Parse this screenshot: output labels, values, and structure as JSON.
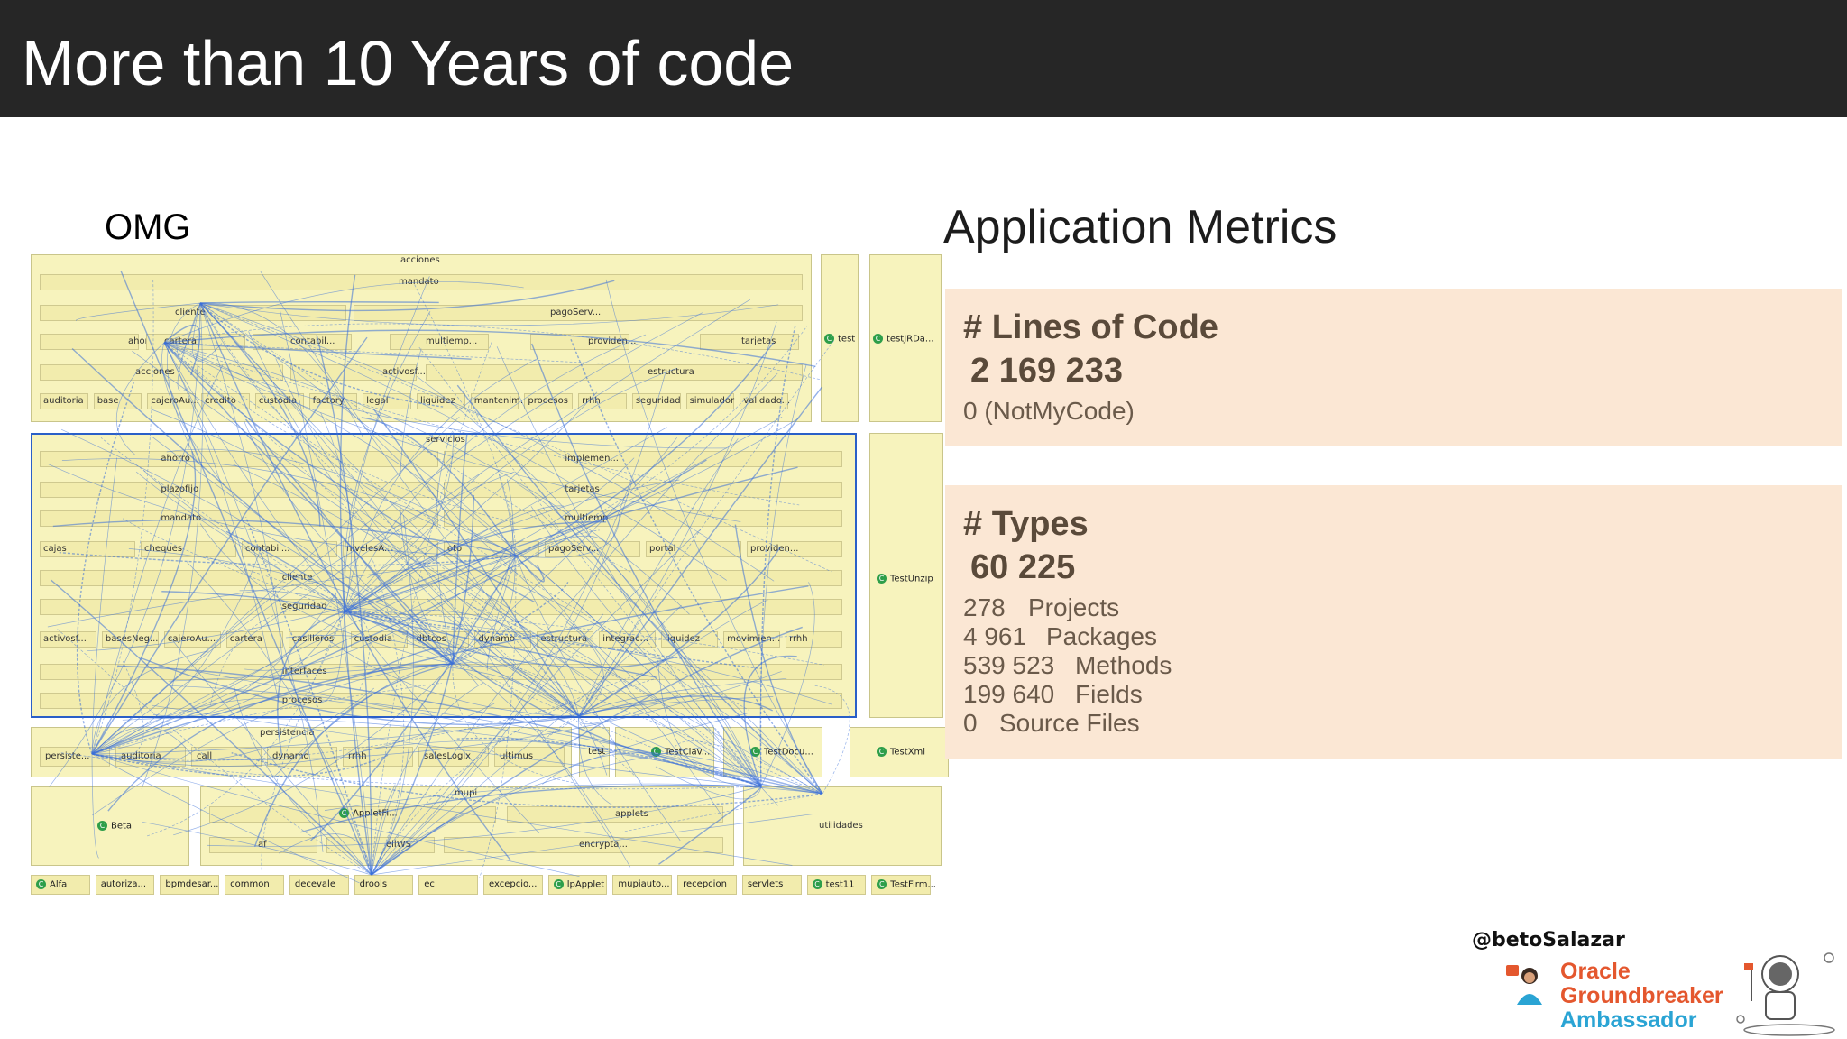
{
  "header": {
    "title": "More than 10 Years of code"
  },
  "diagram": {
    "caption": "OMG",
    "top_boxes": [
      "acciones",
      "mandato",
      "cliente",
      "pagoServ...",
      "ahorro",
      "cartera",
      "contabil...",
      "multiemp...",
      "providen...",
      "tarjetas",
      "acciones",
      "activosf...",
      "estructura"
    ],
    "top_row": [
      "auditoria",
      "base",
      "cajeroAu...",
      "credito",
      "custodia",
      "factory",
      "legal",
      "liquidez",
      "mantenim...",
      "procesos",
      "rrhh",
      "seguridad",
      "simulador",
      "validado..."
    ],
    "side_top": [
      "test",
      "testJRDa..."
    ],
    "servicios": {
      "title": "servicios",
      "rows": [
        "ahorro",
        "implemen...",
        "plazofijo",
        "tarjetas",
        "mandato",
        "multiemp...",
        "cajas",
        "cheques",
        "contabil...",
        "nivelesA...",
        "oto",
        "pagoServ...",
        "portal",
        "providen...",
        "cliente",
        "seguridad",
        "activosf...",
        "basesNeg...",
        "cajeroAu...",
        "cartera",
        "casilleros",
        "custodia",
        "dbtcos",
        "dynamo",
        "estructura",
        "integrac...",
        "liquidez",
        "movimien...",
        "rrhh",
        "interfaces",
        "procesos"
      ]
    },
    "side_mid": "TestUnzip",
    "persistencia": {
      "title": "persistencia",
      "items": [
        "persiste...",
        "auditoria",
        "call",
        "dynamo",
        "rrhh",
        "salesLogix",
        "ultimus"
      ]
    },
    "test_items": [
      "test",
      "TestClav...",
      "TestDocu...",
      "TestXml"
    ],
    "mupi": {
      "title": "mupi",
      "items": [
        "AppletFi...",
        "applets",
        "af",
        "ellWS",
        "encrypta..."
      ]
    },
    "beta": "Beta",
    "utilidades": "utilidades",
    "bottom_row": [
      "Alfa",
      "autoriza...",
      "bpmdesar...",
      "common",
      "decevale",
      "drools",
      "ec",
      "excepcio...",
      "lpApplet",
      "mupiauto...",
      "recepcion",
      "servlets",
      "test11",
      "TestFirm..."
    ],
    "class_glyph": "C",
    "colors": {
      "box_fill": "#f7f3bd",
      "edge": "#3a6fd8",
      "selection": "#2a5fc8"
    }
  },
  "metrics": {
    "title": "Application Metrics",
    "lines_of_code": {
      "heading": "# Lines of Code",
      "value": "2 169 233",
      "sub": "0 (NotMyCode)"
    },
    "types": {
      "heading": "# Types",
      "value": "60 225",
      "rows": [
        {
          "num": "278",
          "label": "Projects"
        },
        {
          "num": "4 961",
          "label": "Packages"
        },
        {
          "num": "539 523",
          "label": "Methods"
        },
        {
          "num": "199 640",
          "label": "Fields"
        },
        {
          "num": "0",
          "label": "Source Files"
        }
      ]
    },
    "card_color": "#fbe7d4"
  },
  "footer": {
    "handle": "@betoSalazar",
    "badge_line1": "Oracle",
    "badge_line2": "Groundbreaker",
    "badge_line3": "Ambassador",
    "icons": [
      "ambassador-figure-icon",
      "astronaut-icon"
    ]
  }
}
